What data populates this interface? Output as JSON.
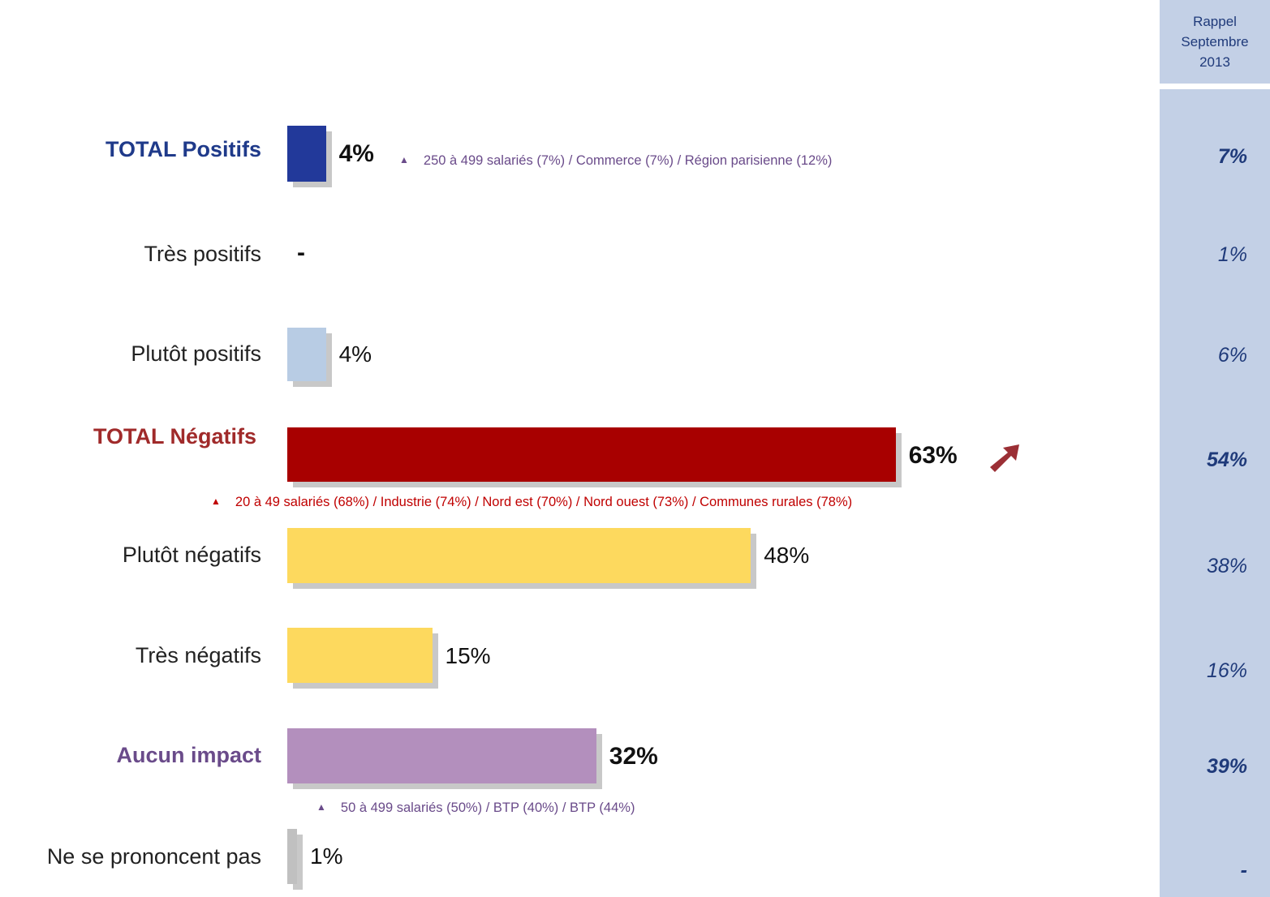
{
  "chart_data": {
    "type": "bar",
    "orientation": "horizontal",
    "categories": [
      "TOTAL Positifs",
      "Très positifs",
      "Plutôt positifs",
      "TOTAL Négatifs",
      "Plutôt négatifs",
      "Très négatifs",
      "Aucun impact",
      "Ne se prononcent pas"
    ],
    "values": [
      4,
      null,
      4,
      63,
      48,
      15,
      32,
      1
    ],
    "value_labels": [
      "4%",
      "-",
      "4%",
      "63%",
      "48%",
      "15%",
      "32%",
      "1%"
    ],
    "colors": [
      "#22399a",
      "#b8cce4",
      "#b8cce4",
      "#a80000",
      "#fdd95e",
      "#fdd95e",
      "#b38fbd",
      "#c0c0c0"
    ],
    "label_colors": [
      "#1f3a8a",
      "#222222",
      "#222222",
      "#a02a2a",
      "#222222",
      "#222222",
      "#6a4b8a",
      "#222222"
    ],
    "emphasis": [
      true,
      false,
      false,
      true,
      false,
      false,
      true,
      false
    ],
    "xlim": [
      0,
      100
    ],
    "rappel": {
      "header": [
        "Rappel",
        "Septembre",
        "2013"
      ],
      "values": [
        "7%",
        "1%",
        "6%",
        "54%",
        "38%",
        "16%",
        "39%",
        "-"
      ]
    },
    "annotations": [
      {
        "row": 0,
        "text": "250 à 499 salariés (7%) / Commerce (7%) / Région parisienne (12%)",
        "color": "#6a4b8a"
      },
      {
        "row": 3,
        "text": "20 à 49 salariés (68%) / Industrie (74%) / Nord est (70%) / Nord ouest (73%) / Communes rurales (78%)",
        "color": "#c00000"
      },
      {
        "row": 6,
        "text": "50 à 499 salariés (50%) / BTP (40%) / BTP (44%)",
        "color": "#6a4b8a"
      }
    ],
    "trend_icon": "up-right-arrow-icon",
    "trend_color": "#9b2f35"
  },
  "note_marker": "▲"
}
